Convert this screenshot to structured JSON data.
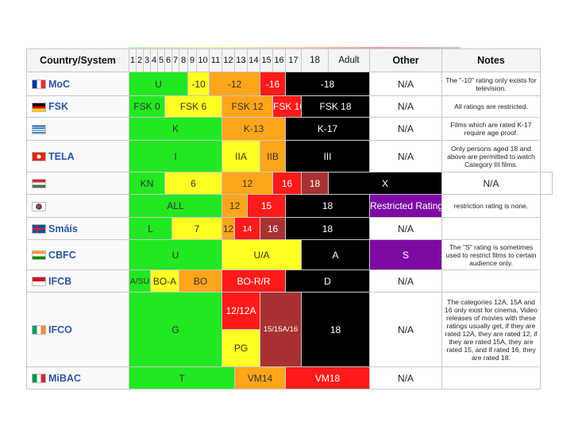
{
  "headers": {
    "system": "Country/System",
    "ages": [
      "1",
      "2",
      "3",
      "4",
      "5",
      "6",
      "7",
      "8",
      "9",
      "10",
      "11",
      "12",
      "13",
      "14",
      "15",
      "16",
      "17",
      "18",
      "Adult"
    ],
    "other": "Other",
    "notes": "Notes"
  },
  "colors": {
    "green": "#22e822",
    "yellow": "#ffff22",
    "orange": "#ffa51a",
    "red": "#ff1a1a",
    "maroon": "#a83232",
    "black": "#000000",
    "purple": "#7d0aa5"
  },
  "rows": [
    {
      "system": "MoC",
      "flag": "france-flag-icon",
      "cells": [
        "U",
        "-10",
        "-12",
        "-16",
        "-18"
      ],
      "other": "N/A",
      "note": "The \"-10\" rating only exists for television."
    },
    {
      "system": "FSK",
      "flag": "germany-flag-icon",
      "cells": [
        "FSK 0",
        "FSK 6",
        "FSK 12",
        "FSK 16",
        "FSK 18"
      ],
      "other": "N/A",
      "note": "All ratings are restricted."
    },
    {
      "system": "",
      "flag": "greece-flag-icon",
      "cells": [
        "K",
        "K-13",
        "K-17"
      ],
      "other": "N/A",
      "note": "Films which are rated K-17 require age proof."
    },
    {
      "system": "TELA",
      "flag": "hong-kong-flag-icon",
      "cells": [
        "I",
        "IIA",
        "IIB",
        "III"
      ],
      "other": "N/A",
      "note": "Only persons aged 18 and above are permitted to watch Category III films."
    },
    {
      "system": "",
      "flag": "hungary-flag-icon",
      "cells": [
        "KN",
        "6",
        "12",
        "16",
        "18",
        "X"
      ],
      "other": "N/A",
      "note": ""
    },
    {
      "system": "",
      "flag": "south-korea-flag-icon",
      "cells": [
        "ALL",
        "12",
        "15",
        "18"
      ],
      "other": "Restricted Rating",
      "note": "restriction rating is none."
    },
    {
      "system": "Smáís",
      "flag": "iceland-flag-icon",
      "cells": [
        "L",
        "7",
        "12",
        "14",
        "16",
        "18"
      ],
      "other": "N/A",
      "note": ""
    },
    {
      "system": "CBFC",
      "flag": "india-flag-icon",
      "cells": [
        "U",
        "U/A",
        "A"
      ],
      "other": "S",
      "note": "The \"S\" rating is sometimes used to restrict films to certain audience only."
    },
    {
      "system": "IFCB",
      "flag": "indonesia-flag-icon",
      "cells": [
        "A/SU",
        "BO-A",
        "BO",
        "BO-R/R",
        "D"
      ],
      "other": "N/A",
      "note": ""
    },
    {
      "system": "IFCO",
      "flag": "ireland-flag-icon",
      "cells": [
        "G",
        "12/12A",
        "PG",
        "15/15A/16",
        "18"
      ],
      "other": "N/A",
      "note": "The categories 12A, 15A and 16 only exist for cinema. Video releases of movies with these ratings usually get, if they are rated 12A, they are rated 12, if they are rated 15A, they are rated 15, and if rated 16, they are rated 18."
    },
    {
      "system": "MiBAC",
      "flag": "italy-flag-icon",
      "cells": [
        "T",
        "VM14",
        "VM18"
      ],
      "other": "N/A",
      "note": ""
    }
  ]
}
